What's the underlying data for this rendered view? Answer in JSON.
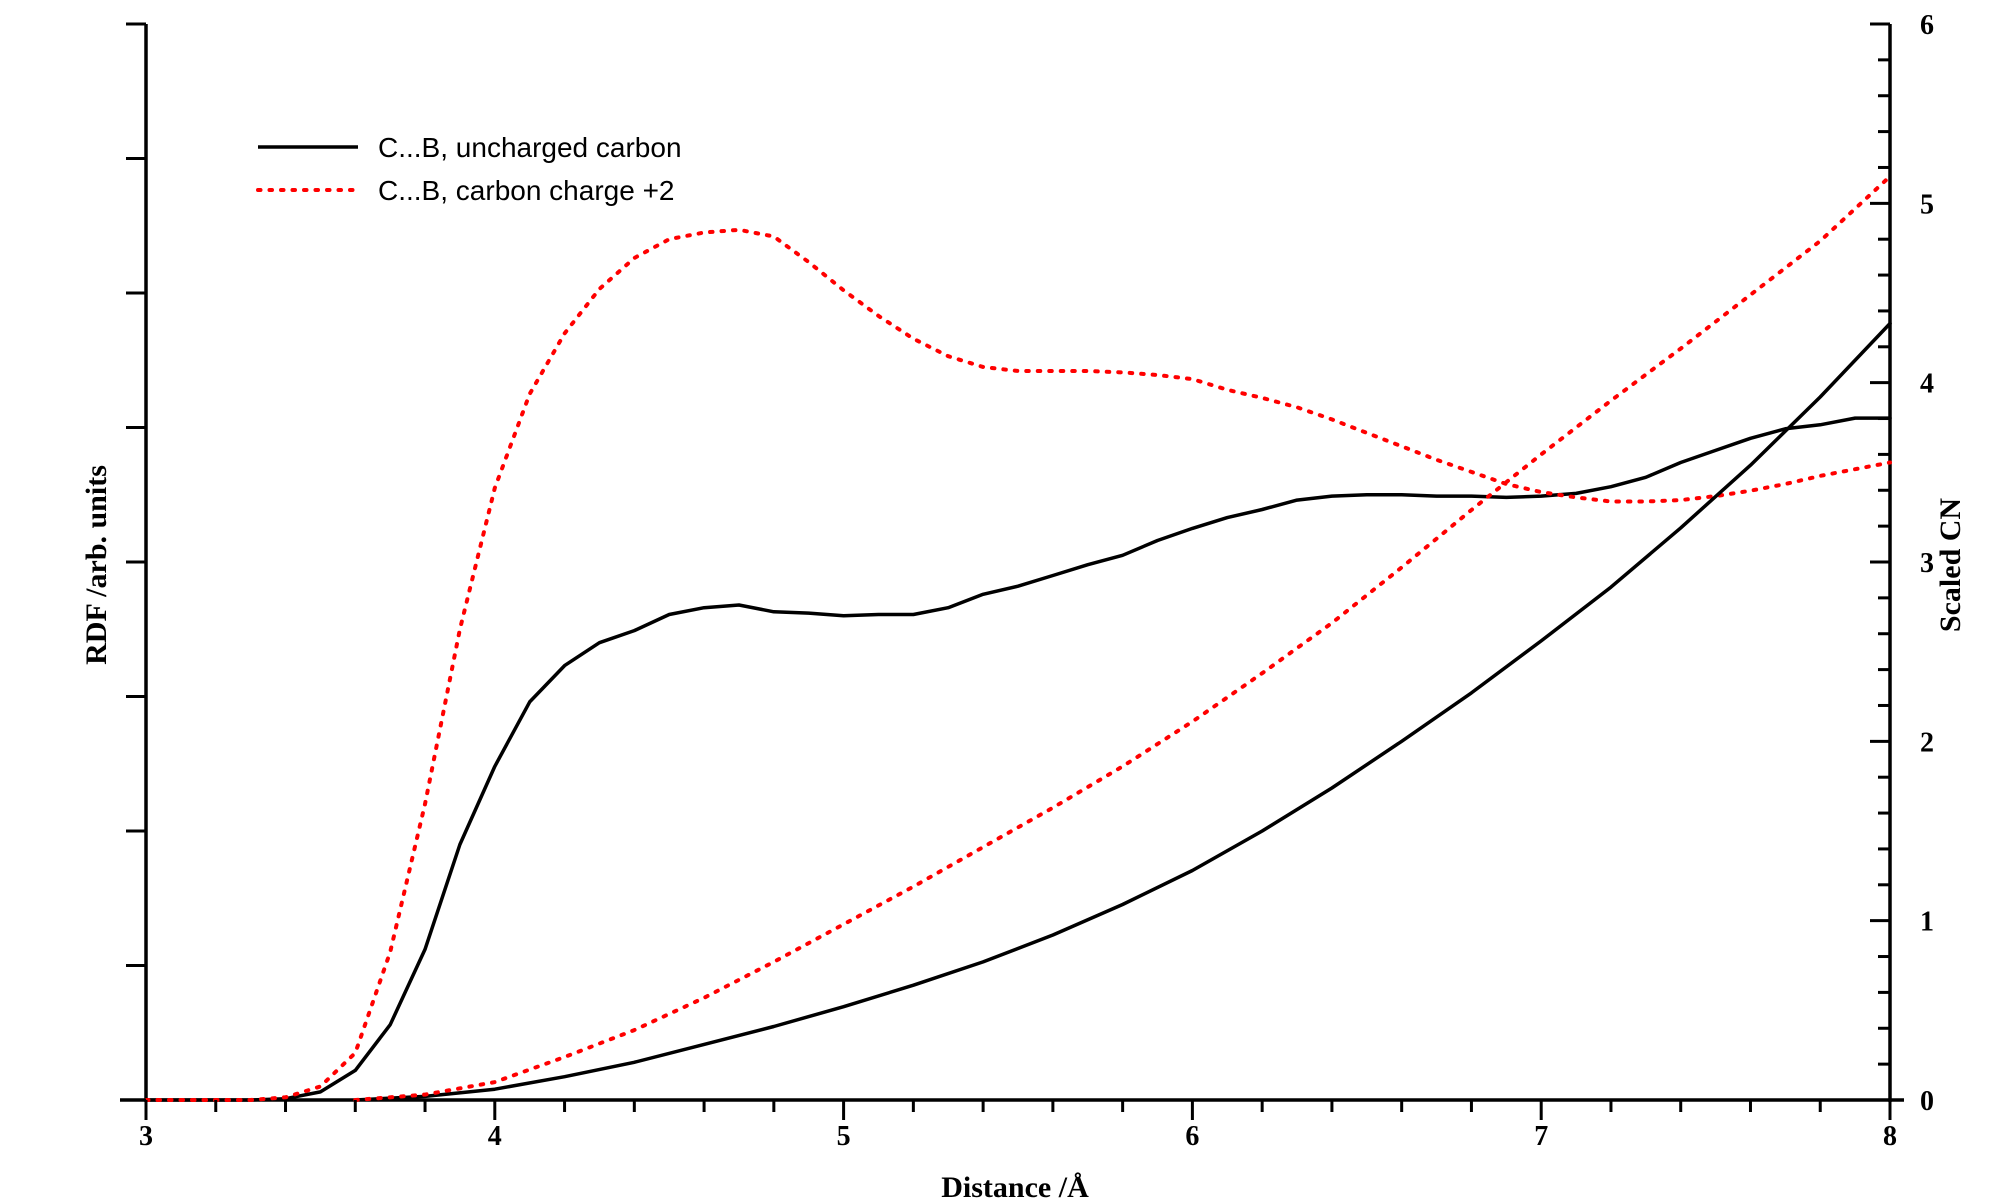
{
  "chart_data": {
    "type": "line",
    "title": "",
    "xlabel": "Distance /Å",
    "ylabel_left": "RDF /arb. units",
    "ylabel_right": "Scaled CN",
    "xlim": [
      3,
      8
    ],
    "ylim_left": [
      0,
      8
    ],
    "ylim_right": [
      0,
      6
    ],
    "x_ticks": [
      "3",
      "4",
      "5",
      "6",
      "7",
      "8"
    ],
    "y_right_ticks": [
      "0",
      "1",
      "2",
      "3",
      "4",
      "5",
      "6"
    ],
    "grid": false,
    "legend_position": "top-left",
    "legend": [
      {
        "label": "C...B, uncharged carbon",
        "style": "solid",
        "color": "#000000"
      },
      {
        "label": "C...B, carbon charge +2",
        "style": "dotted",
        "color": "#ff0000"
      }
    ],
    "series": [
      {
        "name": "C...B, uncharged carbon",
        "kind": "RDF",
        "axis": "left",
        "color": "#000000",
        "style": "solid",
        "x": [
          3.0,
          3.3,
          3.4,
          3.5,
          3.6,
          3.7,
          3.8,
          3.9,
          4.0,
          4.1,
          4.2,
          4.3,
          4.4,
          4.5,
          4.6,
          4.7,
          4.8,
          4.9,
          5.0,
          5.1,
          5.2,
          5.3,
          5.4,
          5.5,
          5.6,
          5.7,
          5.8,
          5.9,
          6.0,
          6.1,
          6.2,
          6.3,
          6.4,
          6.5,
          6.6,
          6.7,
          6.8,
          6.9,
          7.0,
          7.1,
          7.2,
          7.3,
          7.4,
          7.5,
          7.6,
          7.7,
          7.8,
          7.9,
          8.0
        ],
        "y": [
          0.0,
          0.0,
          0.01,
          0.06,
          0.22,
          0.56,
          1.12,
          1.9,
          2.48,
          2.96,
          3.23,
          3.4,
          3.49,
          3.61,
          3.66,
          3.68,
          3.63,
          3.62,
          3.6,
          3.61,
          3.61,
          3.66,
          3.76,
          3.82,
          3.9,
          3.98,
          4.05,
          4.16,
          4.25,
          4.33,
          4.39,
          4.46,
          4.49,
          4.5,
          4.5,
          4.49,
          4.49,
          4.48,
          4.49,
          4.51,
          4.56,
          4.63,
          4.74,
          4.83,
          4.92,
          4.99,
          5.02,
          5.07,
          5.07
        ]
      },
      {
        "name": "C...B, carbon charge +2",
        "kind": "RDF",
        "axis": "left",
        "color": "#ff0000",
        "style": "dotted",
        "x": [
          3.0,
          3.3,
          3.4,
          3.5,
          3.6,
          3.7,
          3.8,
          3.9,
          4.0,
          4.1,
          4.2,
          4.3,
          4.4,
          4.5,
          4.6,
          4.7,
          4.8,
          4.9,
          5.0,
          5.1,
          5.2,
          5.3,
          5.4,
          5.5,
          5.6,
          5.7,
          5.8,
          5.9,
          6.0,
          6.1,
          6.2,
          6.3,
          6.4,
          6.5,
          6.6,
          6.7,
          6.8,
          6.9,
          7.0,
          7.1,
          7.2,
          7.3,
          7.4,
          7.5,
          7.6,
          7.7,
          7.8,
          7.9,
          8.0
        ],
        "y": [
          0.0,
          0.0,
          0.02,
          0.1,
          0.35,
          1.1,
          2.2,
          3.5,
          4.55,
          5.25,
          5.7,
          6.03,
          6.26,
          6.4,
          6.45,
          6.47,
          6.42,
          6.23,
          6.02,
          5.83,
          5.66,
          5.53,
          5.45,
          5.42,
          5.42,
          5.42,
          5.41,
          5.39,
          5.36,
          5.28,
          5.22,
          5.15,
          5.06,
          4.96,
          4.86,
          4.76,
          4.67,
          4.58,
          4.52,
          4.48,
          4.45,
          4.45,
          4.46,
          4.49,
          4.53,
          4.58,
          4.64,
          4.69,
          4.74
        ]
      },
      {
        "name": "C...B, uncharged carbon",
        "kind": "Scaled CN",
        "axis": "right",
        "color": "#000000",
        "style": "solid",
        "x": [
          3.6,
          3.8,
          4.0,
          4.2,
          4.4,
          4.6,
          4.8,
          5.0,
          5.2,
          5.4,
          5.6,
          5.8,
          6.0,
          6.2,
          6.4,
          6.6,
          6.8,
          7.0,
          7.2,
          7.4,
          7.6,
          7.8,
          8.0
        ],
        "y": [
          0.0,
          0.02,
          0.06,
          0.13,
          0.21,
          0.31,
          0.41,
          0.52,
          0.64,
          0.77,
          0.92,
          1.09,
          1.28,
          1.5,
          1.74,
          2.0,
          2.27,
          2.56,
          2.86,
          3.19,
          3.54,
          3.92,
          4.33
        ]
      },
      {
        "name": "C...B, carbon charge +2",
        "kind": "Scaled CN",
        "axis": "right",
        "color": "#ff0000",
        "style": "dotted",
        "x": [
          3.6,
          3.8,
          4.0,
          4.2,
          4.4,
          4.6,
          4.8,
          5.0,
          5.2,
          5.4,
          5.6,
          5.8,
          6.0,
          6.2,
          6.4,
          6.6,
          6.8,
          7.0,
          7.2,
          7.4,
          7.6,
          7.8,
          8.0
        ],
        "y": [
          0.0,
          0.03,
          0.1,
          0.24,
          0.39,
          0.57,
          0.77,
          0.98,
          1.19,
          1.41,
          1.63,
          1.86,
          2.11,
          2.38,
          2.66,
          2.97,
          3.29,
          3.6,
          3.9,
          4.19,
          4.49,
          4.79,
          5.15
        ]
      }
    ]
  }
}
